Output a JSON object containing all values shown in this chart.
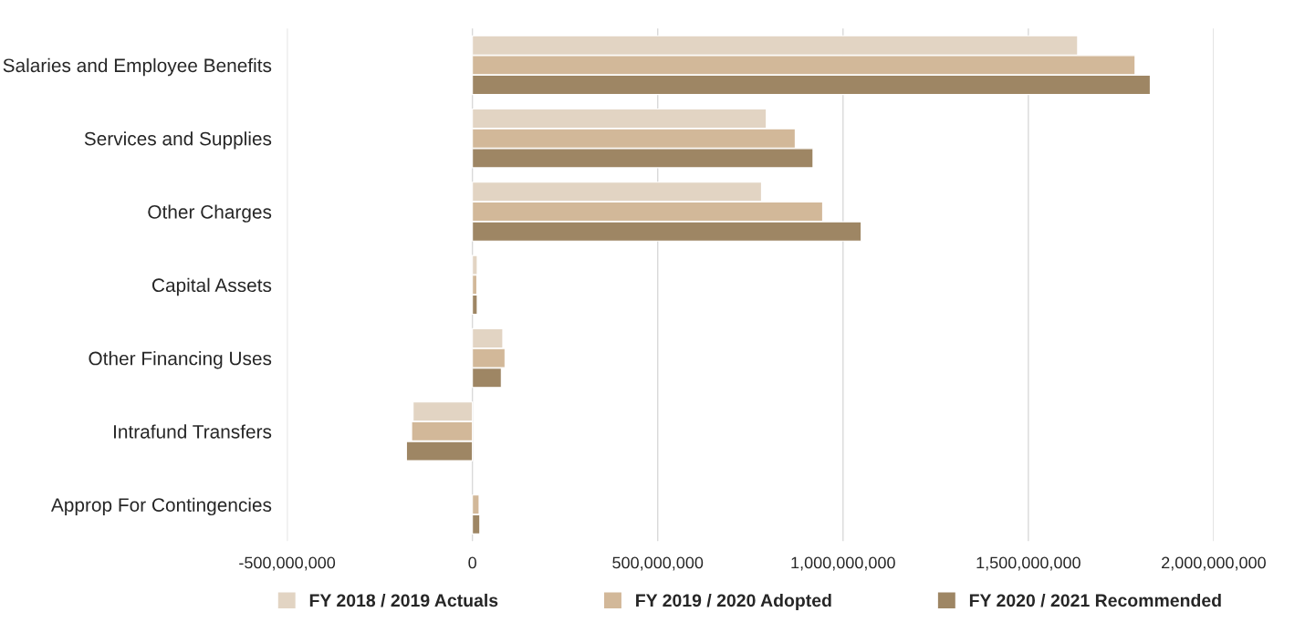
{
  "chart_data": {
    "type": "bar",
    "orientation": "horizontal",
    "categories": [
      "Salaries and Employee Benefits",
      "Services and Supplies",
      "Other Charges",
      "Capital Assets",
      "Other Financing Uses",
      "Intrafund Transfers",
      "Approp For Contingencies"
    ],
    "series": [
      {
        "name": "FY 2018 / 2019 Actuals",
        "color": "#e2d4c3",
        "values": [
          1633000000,
          793000000,
          780000000,
          13000000,
          82000000,
          -160000000,
          null
        ]
      },
      {
        "name": "FY 2019 / 2020 Adopted",
        "color": "#d2b899",
        "values": [
          1788000000,
          871000000,
          945000000,
          12000000,
          88000000,
          -164000000,
          18000000
        ]
      },
      {
        "name": "FY 2020 / 2021 Recommended",
        "color": "#9e8664",
        "values": [
          1829000000,
          919000000,
          1049000000,
          13000000,
          78000000,
          -178000000,
          20000000
        ]
      }
    ],
    "xlim": [
      -500000000,
      2000000000
    ],
    "xticks": [
      {
        "value": -500000000,
        "label": "-500,000,000"
      },
      {
        "value": 0,
        "label": "0"
      },
      {
        "value": 500000000,
        "label": "500,000,000"
      },
      {
        "value": 1000000000,
        "label": "1,000,000,000"
      },
      {
        "value": 1500000000,
        "label": "1,500,000,000"
      },
      {
        "value": 2000000000,
        "label": "2,000,000,000"
      }
    ],
    "grid": "x",
    "legend": "bottom"
  }
}
